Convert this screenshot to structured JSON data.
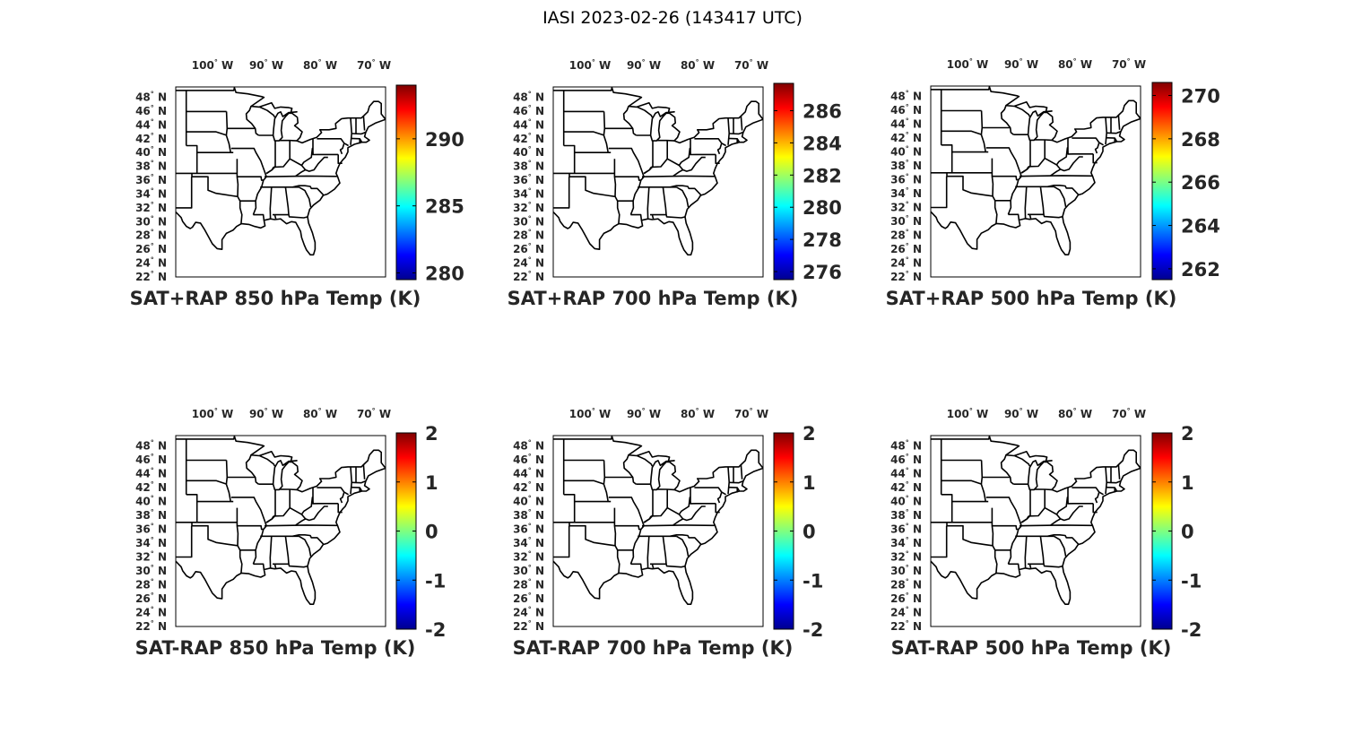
{
  "figure": {
    "title": "IASI 2023-02-26 (143417 UTC)"
  },
  "map": {
    "lon_labels": [
      "100° W",
      "90° W",
      "80° W",
      "70° W"
    ],
    "lon_values": [
      -100,
      -90,
      -80,
      -70
    ],
    "lat_labels": [
      "48° N",
      "46° N",
      "44° N",
      "42° N",
      "40° N",
      "38° N",
      "36° N",
      "34° N",
      "32° N",
      "30° N",
      "28° N",
      "26° N",
      "24° N",
      "22° N"
    ],
    "lat_values": [
      48,
      46,
      44,
      42,
      40,
      38,
      36,
      34,
      32,
      30,
      28,
      26,
      24,
      22
    ],
    "lon_range": [
      -106,
      -67
    ],
    "lat_range": [
      22,
      49.5
    ]
  },
  "panels": [
    {
      "title": "SAT+RAP 850 hPa Temp (K)",
      "colorbar_ticks": [
        "290",
        "285",
        "280"
      ],
      "colorbar_values": [
        290,
        285,
        280
      ],
      "colorbar_range": [
        279.5,
        294
      ]
    },
    {
      "title": "SAT+RAP 700 hPa Temp (K)",
      "colorbar_ticks": [
        "286",
        "284",
        "282",
        "280",
        "278",
        "276"
      ],
      "colorbar_values": [
        286,
        284,
        282,
        280,
        278,
        276
      ],
      "colorbar_range": [
        275.5,
        287.7
      ]
    },
    {
      "title": "SAT+RAP 500 hPa Temp (K)",
      "colorbar_ticks": [
        "270",
        "268",
        "266",
        "264",
        "262"
      ],
      "colorbar_values": [
        270,
        268,
        266,
        264,
        262
      ],
      "colorbar_range": [
        261.5,
        270.6
      ]
    },
    {
      "title": "SAT-RAP 850 hPa Temp (K)",
      "colorbar_ticks": [
        "2",
        "1",
        "0",
        "-1",
        "-2"
      ],
      "colorbar_values": [
        2,
        1,
        0,
        -1,
        -2
      ],
      "colorbar_range": [
        -2,
        2
      ]
    },
    {
      "title": "SAT-RAP 700 hPa Temp (K)",
      "colorbar_ticks": [
        "2",
        "1",
        "0",
        "-1",
        "-2"
      ],
      "colorbar_values": [
        2,
        1,
        0,
        -1,
        -2
      ],
      "colorbar_range": [
        -2,
        2
      ]
    },
    {
      "title": "SAT-RAP 500 hPa Temp (K)",
      "colorbar_ticks": [
        "2",
        "1",
        "0",
        "-1",
        "-2"
      ],
      "colorbar_values": [
        2,
        1,
        0,
        -1,
        -2
      ],
      "colorbar_range": [
        -2,
        2
      ]
    }
  ],
  "colormap": "jet"
}
